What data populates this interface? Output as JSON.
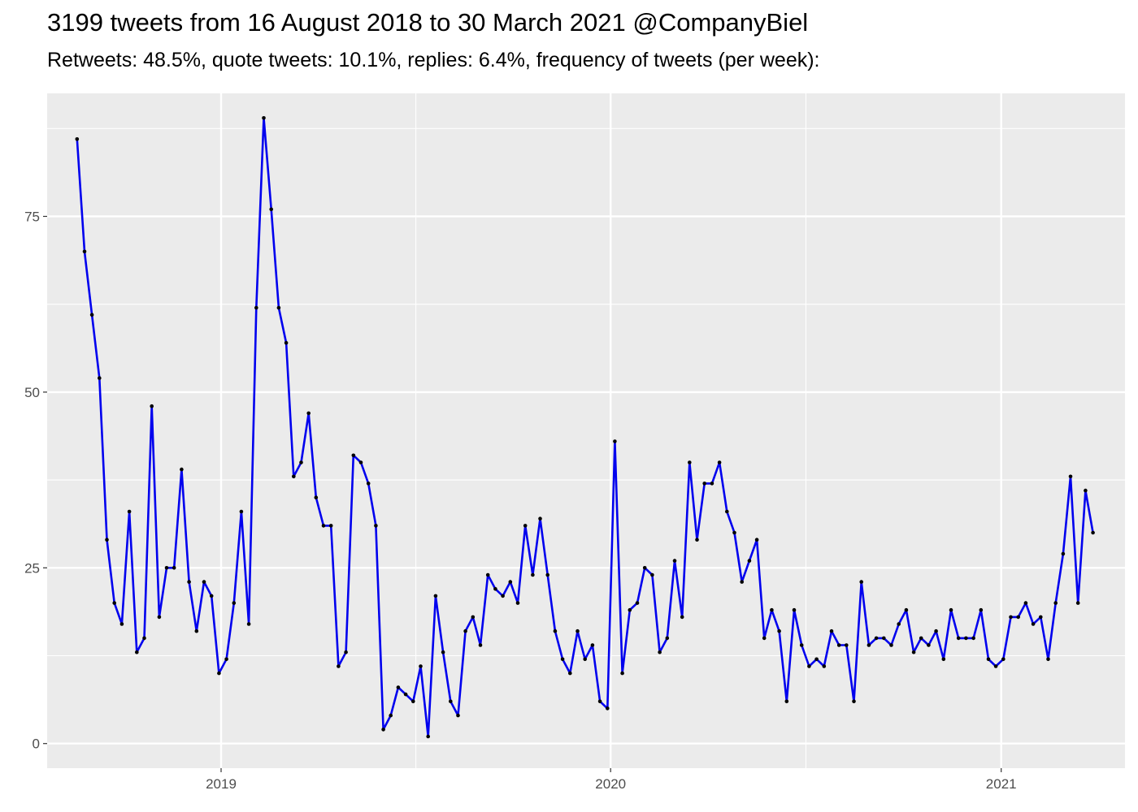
{
  "title": "3199 tweets from 16 August 2018 to 30 March 2021 @CompanyBiel",
  "subtitle": "Retweets: 48.5%, quote tweets: 10.1%, replies: 6.4%, frequency of tweets (per week):",
  "chart_data": {
    "type": "line",
    "title": "3199 tweets from 16 August 2018 to 30 March 2021 @CompanyBiel",
    "subtitle": "Retweets: 48.5%, quote tweets: 10.1%, replies: 6.4%, frequency of tweets (per week):",
    "xlabel": "",
    "ylabel": "",
    "xlim": [
      "2018-07-22",
      "2021-04-27"
    ],
    "ylim": [
      -3.5,
      92.5
    ],
    "x_ticks": [
      {
        "date": "2019-01-01",
        "label": "2019"
      },
      {
        "date": "2020-01-01",
        "label": "2020"
      },
      {
        "date": "2021-01-01",
        "label": "2021"
      }
    ],
    "y_ticks": [
      0,
      25,
      50,
      75
    ],
    "grid": true,
    "line_color": "#0000ee",
    "point_color": "#000000",
    "background_color": "#ebebeb",
    "x_start": "2018-08-19",
    "x_step_days": 7,
    "series": [
      {
        "values": [
          86,
          70,
          61,
          52,
          29,
          20,
          17,
          33,
          13,
          15,
          48,
          18,
          25,
          25,
          39,
          23,
          16,
          23,
          21,
          10,
          12,
          20,
          33,
          17,
          62,
          89,
          76,
          62,
          57,
          38,
          40,
          47,
          35,
          31,
          31,
          11,
          13,
          41,
          40,
          37,
          31,
          2,
          4,
          8,
          7,
          6,
          11,
          1,
          21,
          13,
          6,
          4,
          16,
          18,
          14,
          24,
          22,
          21,
          23,
          20,
          31,
          24,
          32,
          24,
          16,
          12,
          10,
          16,
          12,
          14,
          6,
          5,
          43,
          10,
          19,
          20,
          25,
          24,
          13,
          15,
          26,
          18,
          40,
          29,
          37,
          37,
          40,
          33,
          30,
          23,
          26,
          29,
          15,
          19,
          16,
          6,
          19,
          14,
          11,
          12,
          11,
          16,
          14,
          14,
          6,
          23,
          14,
          15,
          15,
          14,
          17,
          19,
          13,
          15,
          14,
          16,
          12,
          19,
          15,
          15,
          15,
          19,
          12,
          11,
          12,
          18,
          18,
          20,
          17,
          18,
          12,
          20,
          27,
          38,
          20,
          36,
          30
        ]
      }
    ]
  }
}
